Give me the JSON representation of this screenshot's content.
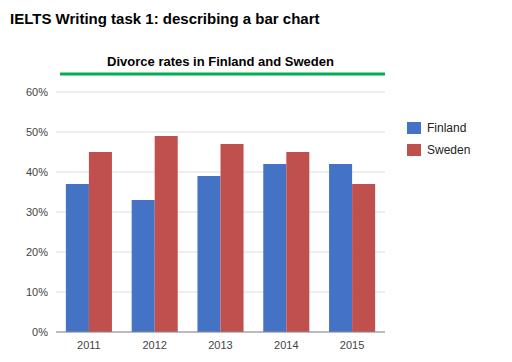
{
  "chart_data": {
    "type": "bar",
    "title": "Divorce rates in Finland and Sweden",
    "subtitle": "IELTS Writing task 1: describing a bar chart",
    "categories": [
      "2011",
      "2012",
      "2013",
      "2014",
      "2015"
    ],
    "series": [
      {
        "name": "Finland",
        "color": "#4472C4",
        "values": [
          37,
          33,
          39,
          42,
          42
        ]
      },
      {
        "name": "Sweden",
        "color": "#C0504D",
        "values": [
          45,
          49,
          47,
          45,
          37
        ]
      }
    ],
    "ylim": [
      0,
      60
    ],
    "yticks": [
      {
        "value": 0,
        "label": "0%"
      },
      {
        "value": 10,
        "label": "10%"
      },
      {
        "value": 20,
        "label": "20%"
      },
      {
        "value": 30,
        "label": "30%"
      },
      {
        "value": 40,
        "label": "40%"
      },
      {
        "value": 50,
        "label": "50%"
      },
      {
        "value": 60,
        "label": "60%"
      }
    ],
    "grid": true,
    "legend": "right"
  }
}
